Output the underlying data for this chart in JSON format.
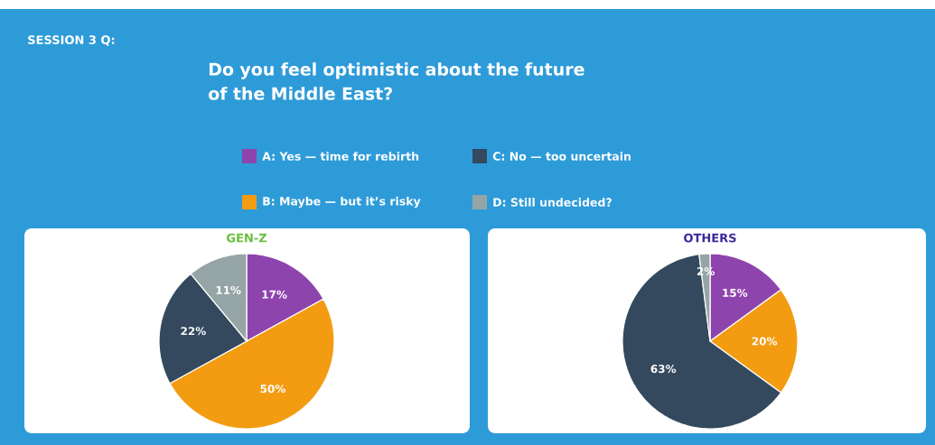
{
  "chart_data": [
    {
      "type": "pie",
      "title": "GEN-Z",
      "annotations": [
        "SESSION 3 Q:",
        "Do you feel optimistic about the future of the Middle East?"
      ],
      "categories": [
        "A: Yes — time for rebirth",
        "B: Maybe — but it’s risky",
        "C: No — too uncertain",
        "D: Still undecided?"
      ],
      "values": [
        17,
        50,
        22,
        11
      ],
      "value_labels": [
        "17%",
        "50%",
        "22%",
        "11%"
      ],
      "colors": [
        "#8e44ad",
        "#f39c12",
        "#34495e",
        "#95a5a6"
      ],
      "legend": "top"
    },
    {
      "type": "pie",
      "title": "OTHERS",
      "categories": [
        null,
        null,
        null,
        null
      ],
      "values": [
        15,
        20,
        63,
        2
      ],
      "value_labels": [
        "15%",
        "20%",
        "63%",
        "2%"
      ],
      "colors": [
        "#8e44ad",
        "#f39c12",
        "#34495e",
        "#95a5a6"
      ]
    }
  ]
}
